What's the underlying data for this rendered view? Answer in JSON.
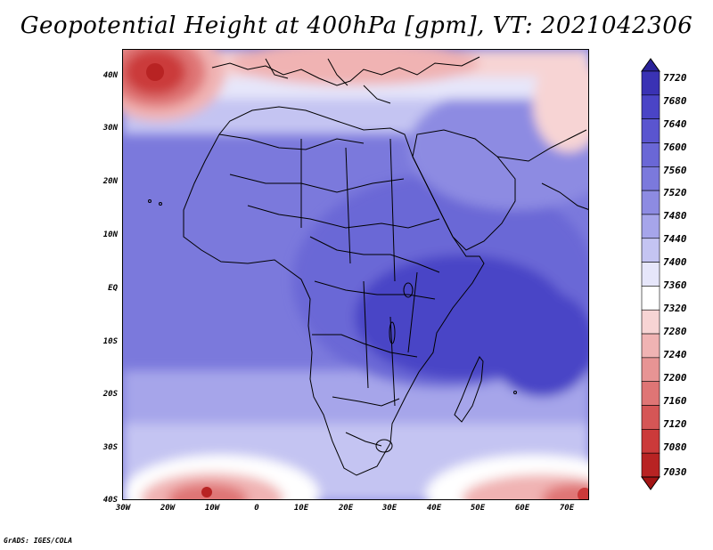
{
  "title": "Geopotential Height at 400hPa [gpm], VT: 2021042306",
  "credit": "GrADS: IGES/COLA",
  "lat_axis": {
    "labels": [
      "40N",
      "30N",
      "20N",
      "10N",
      "EQ",
      "10S",
      "20S",
      "30S",
      "40S"
    ],
    "values": [
      40,
      30,
      20,
      10,
      0,
      -10,
      -20,
      -30,
      -40
    ]
  },
  "lon_axis": {
    "labels": [
      "30W",
      "20W",
      "10W",
      "0",
      "10E",
      "20E",
      "30E",
      "40E",
      "50E",
      "60E",
      "70E"
    ],
    "values": [
      -30,
      -20,
      -10,
      0,
      10,
      20,
      30,
      40,
      50,
      60,
      70
    ]
  },
  "map_extent": {
    "lon_min": -30,
    "lon_max": 75,
    "lat_min": -40,
    "lat_max": 45
  },
  "colorbar": {
    "units": "gpm",
    "levels": [
      "7720",
      "7680",
      "7640",
      "7600",
      "7560",
      "7520",
      "7480",
      "7440",
      "7400",
      "7360",
      "7320",
      "7280",
      "7240",
      "7200",
      "7160",
      "7120",
      "7080",
      "7030"
    ],
    "colors": [
      "#2a229a",
      "#3a32b4",
      "#4a44c6",
      "#5a55cf",
      "#6a67d6",
      "#7b79dc",
      "#8d8be2",
      "#a6a5ea",
      "#c4c4f2",
      "#e6e6fa",
      "#ffffff",
      "#f7d4d4",
      "#f0b3b3",
      "#e79494",
      "#df7575",
      "#d55656",
      "#cb3a3a",
      "#b82323",
      "#a31414"
    ]
  },
  "chart_data": {
    "type": "heatmap",
    "title": "Geopotential Height at 400hPa [gpm], VT: 2021042306",
    "variable": "Geopotential Height",
    "level": "400hPa",
    "units": "gpm",
    "valid_time": "2021042306",
    "value_range": [
      7030,
      7720
    ],
    "features": [
      {
        "type": "low",
        "lon": -22,
        "lat": 42,
        "value_approx": 7080
      },
      {
        "type": "low",
        "lon": -10,
        "lat": -38,
        "value_approx": 7080
      },
      {
        "type": "low",
        "lon": 72,
        "lat": -38,
        "value_approx": 7160
      },
      {
        "type": "trough",
        "lon": 40,
        "lat": 43,
        "value_approx": 7300
      },
      {
        "type": "high",
        "lon": 45,
        "lat": -7,
        "value_approx": 7600
      }
    ]
  }
}
